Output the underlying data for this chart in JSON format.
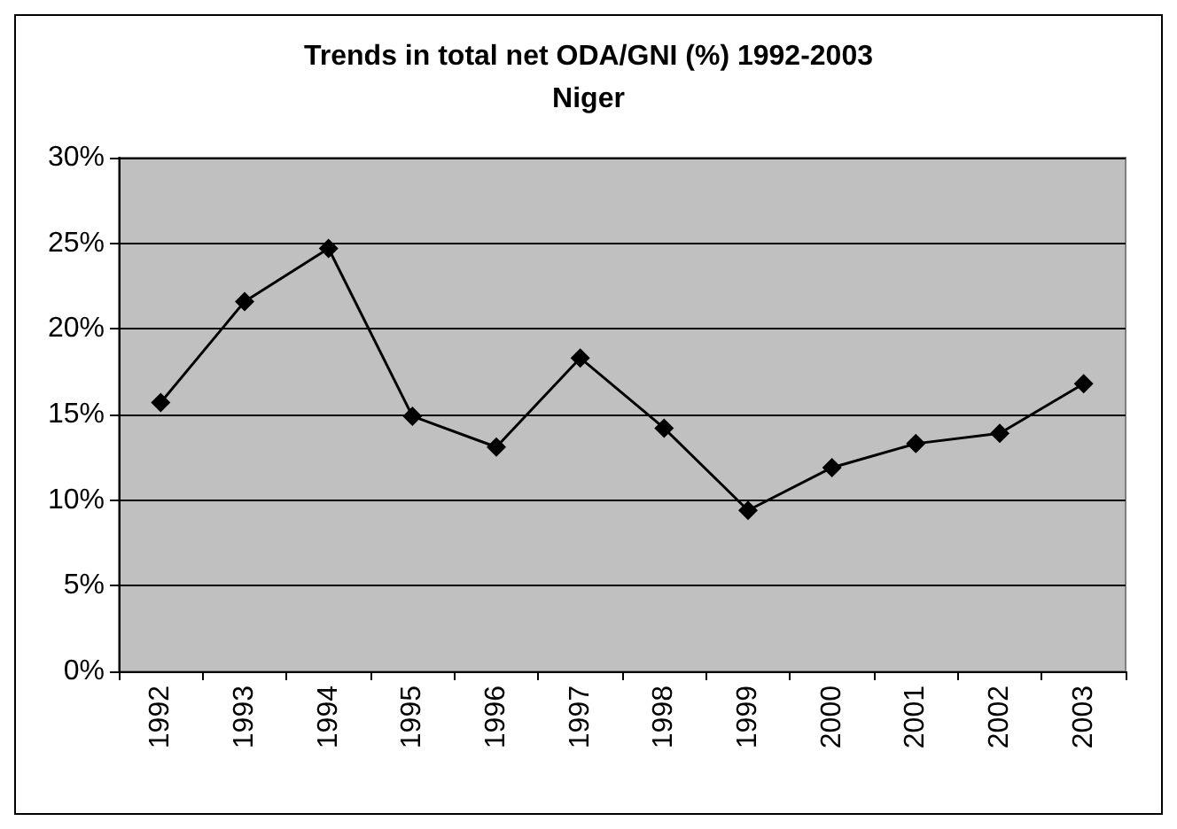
{
  "chart_data": {
    "type": "line",
    "title": "Trends in total net ODA/GNI (%) 1992-2003",
    "subtitle": "Niger",
    "categories": [
      "1992",
      "1993",
      "1994",
      "1995",
      "1996",
      "1997",
      "1998",
      "1999",
      "2000",
      "2001",
      "2002",
      "2003"
    ],
    "series": [
      {
        "color": "#000000",
        "values": [
          15.7,
          21.6,
          24.7,
          14.9,
          13.1,
          18.3,
          14.2,
          9.4,
          11.9,
          13.3,
          13.9,
          16.8
        ]
      }
    ],
    "ylim": [
      0,
      30
    ],
    "yticks": [
      {
        "value": 0,
        "label": "0%"
      },
      {
        "value": 5,
        "label": "5%"
      },
      {
        "value": 10,
        "label": "10%"
      },
      {
        "value": 15,
        "label": "15%"
      },
      {
        "value": 20,
        "label": "20%"
      },
      {
        "value": 25,
        "label": "25%"
      },
      {
        "value": 30,
        "label": "30%"
      }
    ],
    "grid": "y",
    "marker": "diamond",
    "line_style": "solid"
  }
}
